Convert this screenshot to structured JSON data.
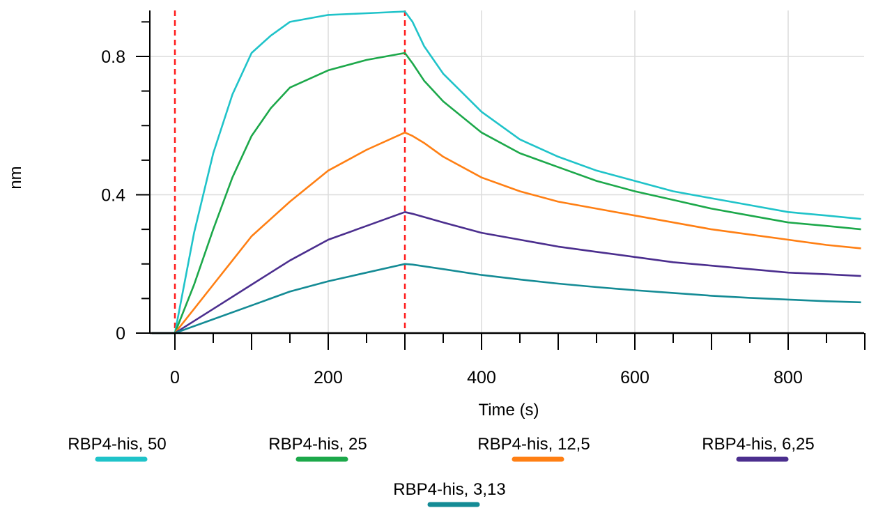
{
  "chart_data": {
    "type": "line",
    "title": "",
    "xlabel": "Time (s)",
    "ylabel": "nm",
    "xlim": [
      -30,
      900
    ],
    "ylim": [
      0,
      0.92
    ],
    "x_ticks": [
      0,
      200,
      400,
      600,
      800
    ],
    "x_tick_labels": [
      "0",
      "200",
      "400",
      "600",
      "800"
    ],
    "y_ticks": [
      0,
      0.4,
      0.8
    ],
    "y_tick_labels": [
      "0",
      "0.4",
      "0.8"
    ],
    "grid": true,
    "legend_position": "bottom",
    "markers": [
      {
        "x": 0,
        "style": "red-dashed-vertical"
      },
      {
        "x": 300,
        "style": "red-dashed-vertical"
      }
    ],
    "series": [
      {
        "name": "RBP4-his, 50",
        "color": "#1FC3C9",
        "x": [
          -30,
          0,
          25,
          50,
          75,
          100,
          125,
          150,
          175,
          200,
          250,
          300,
          310,
          325,
          350,
          400,
          450,
          500,
          550,
          600,
          650,
          700,
          750,
          800,
          850,
          895
        ],
        "y": [
          0,
          0,
          0.29,
          0.52,
          0.69,
          0.81,
          0.86,
          0.9,
          0.91,
          0.92,
          0.925,
          0.93,
          0.9,
          0.83,
          0.75,
          0.64,
          0.56,
          0.51,
          0.47,
          0.44,
          0.41,
          0.39,
          0.37,
          0.35,
          0.34,
          0.33
        ]
      },
      {
        "name": "RBP4-his, 25",
        "color": "#1CA84A",
        "x": [
          -30,
          0,
          25,
          50,
          75,
          100,
          125,
          150,
          200,
          250,
          300,
          310,
          325,
          350,
          400,
          450,
          500,
          550,
          600,
          650,
          700,
          750,
          800,
          850,
          895
        ],
        "y": [
          0,
          0,
          0.14,
          0.3,
          0.45,
          0.57,
          0.65,
          0.71,
          0.76,
          0.79,
          0.81,
          0.78,
          0.73,
          0.67,
          0.58,
          0.52,
          0.48,
          0.44,
          0.41,
          0.385,
          0.36,
          0.34,
          0.32,
          0.31,
          0.3
        ]
      },
      {
        "name": "RBP4-his, 12,5",
        "color": "#FF7F13",
        "x": [
          -30,
          0,
          25,
          50,
          75,
          100,
          125,
          150,
          200,
          250,
          300,
          310,
          325,
          350,
          400,
          450,
          500,
          550,
          600,
          650,
          700,
          750,
          800,
          850,
          895
        ],
        "y": [
          0,
          0,
          0.07,
          0.14,
          0.21,
          0.28,
          0.33,
          0.38,
          0.47,
          0.53,
          0.58,
          0.57,
          0.55,
          0.51,
          0.45,
          0.41,
          0.38,
          0.36,
          0.34,
          0.32,
          0.3,
          0.285,
          0.27,
          0.255,
          0.245
        ]
      },
      {
        "name": "RBP4-his, 6,25",
        "color": "#4B2E8E",
        "x": [
          -30,
          0,
          50,
          100,
          150,
          200,
          250,
          300,
          310,
          350,
          400,
          450,
          500,
          550,
          600,
          650,
          700,
          750,
          800,
          850,
          895
        ],
        "y": [
          0,
          0,
          0.07,
          0.14,
          0.21,
          0.27,
          0.31,
          0.35,
          0.345,
          0.32,
          0.29,
          0.27,
          0.25,
          0.235,
          0.22,
          0.205,
          0.195,
          0.185,
          0.175,
          0.17,
          0.165
        ]
      },
      {
        "name": "RBP4-his, 3,13",
        "color": "#148B95",
        "x": [
          -30,
          0,
          50,
          100,
          150,
          200,
          250,
          300,
          310,
          350,
          400,
          450,
          500,
          550,
          600,
          650,
          700,
          750,
          800,
          850,
          895
        ],
        "y": [
          0,
          0,
          0.04,
          0.08,
          0.12,
          0.15,
          0.175,
          0.2,
          0.198,
          0.185,
          0.168,
          0.155,
          0.143,
          0.133,
          0.124,
          0.116,
          0.108,
          0.102,
          0.097,
          0.092,
          0.089
        ]
      }
    ]
  }
}
